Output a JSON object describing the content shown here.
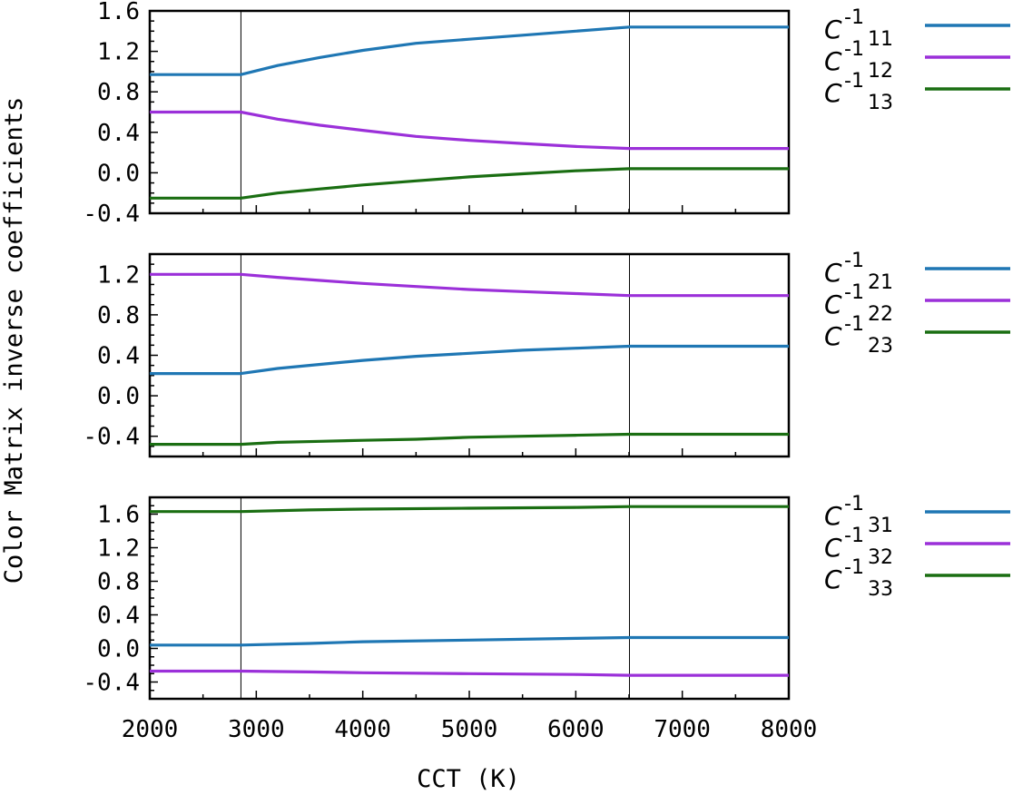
{
  "chart_data": {
    "type": "line",
    "xlabel": "CCT (K)",
    "ylabel": "Color Matrix inverse coefficients",
    "xlim": [
      2000,
      8000
    ],
    "x_ticks": [
      "2000",
      "3000",
      "4000",
      "5000",
      "6000",
      "7000",
      "8000"
    ],
    "x_tick_values": [
      2000,
      3000,
      4000,
      5000,
      6000,
      7000,
      8000
    ],
    "vlines": [
      2856,
      6504
    ],
    "colors": {
      "blue": "#1f77b4",
      "purple": "#9b30d9",
      "green": "#1a6e12"
    },
    "panels": [
      {
        "ylim": [
          -0.4,
          1.6
        ],
        "y_ticks": [
          "-0.4",
          "0.0",
          "0.4",
          "0.8",
          "1.2",
          "1.6"
        ],
        "y_tick_values": [
          -0.4,
          0.0,
          0.4,
          0.8,
          1.2,
          1.6
        ],
        "series": [
          {
            "name": "C-1 11",
            "legend_main": "C",
            "legend_sup": "-1",
            "legend_sub": "11",
            "color": "#1f77b4",
            "x": [
              2000,
              2856,
              3200,
              3600,
              4000,
              4500,
              5000,
              5500,
              6000,
              6504,
              8000
            ],
            "y": [
              0.97,
              0.97,
              1.06,
              1.14,
              1.21,
              1.28,
              1.32,
              1.36,
              1.4,
              1.44,
              1.44
            ]
          },
          {
            "name": "C-1 12",
            "legend_main": "C",
            "legend_sup": "-1",
            "legend_sub": "12",
            "color": "#9b30d9",
            "x": [
              2000,
              2856,
              3200,
              3600,
              4000,
              4500,
              5000,
              5500,
              6000,
              6504,
              8000
            ],
            "y": [
              0.6,
              0.6,
              0.53,
              0.47,
              0.42,
              0.36,
              0.32,
              0.29,
              0.26,
              0.24,
              0.24
            ]
          },
          {
            "name": "C-1 13",
            "legend_main": "C",
            "legend_sup": "-1",
            "legend_sub": "13",
            "color": "#1a6e12",
            "x": [
              2000,
              2856,
              3200,
              3600,
              4000,
              4500,
              5000,
              5500,
              6000,
              6504,
              8000
            ],
            "y": [
              -0.25,
              -0.25,
              -0.2,
              -0.16,
              -0.12,
              -0.08,
              -0.04,
              -0.01,
              0.02,
              0.04,
              0.04
            ]
          }
        ]
      },
      {
        "ylim": [
          -0.6,
          1.4
        ],
        "y_ticks": [
          "-0.4",
          "0.0",
          "0.4",
          "0.8",
          "1.2"
        ],
        "y_tick_values": [
          -0.4,
          0.0,
          0.4,
          0.8,
          1.2
        ],
        "series": [
          {
            "name": "C-1 21",
            "legend_main": "C",
            "legend_sup": "-1",
            "legend_sub": "21",
            "color": "#1f77b4",
            "x": [
              2000,
              2856,
              3200,
              3600,
              4000,
              4500,
              5000,
              5500,
              6000,
              6504,
              8000
            ],
            "y": [
              0.22,
              0.22,
              0.27,
              0.31,
              0.35,
              0.39,
              0.42,
              0.45,
              0.47,
              0.49,
              0.49
            ]
          },
          {
            "name": "C-1 22",
            "legend_main": "C",
            "legend_sup": "-1",
            "legend_sub": "22",
            "color": "#9b30d9",
            "x": [
              2000,
              2856,
              3200,
              3600,
              4000,
              4500,
              5000,
              5500,
              6000,
              6504,
              8000
            ],
            "y": [
              1.2,
              1.2,
              1.17,
              1.14,
              1.11,
              1.08,
              1.05,
              1.03,
              1.01,
              0.99,
              0.99
            ]
          },
          {
            "name": "C-1 23",
            "legend_main": "C",
            "legend_sup": "-1",
            "legend_sub": "23",
            "color": "#1a6e12",
            "x": [
              2000,
              2856,
              3200,
              3600,
              4000,
              4500,
              5000,
              5500,
              6000,
              6504,
              8000
            ],
            "y": [
              -0.48,
              -0.48,
              -0.46,
              -0.45,
              -0.44,
              -0.43,
              -0.41,
              -0.4,
              -0.39,
              -0.38,
              -0.38
            ]
          }
        ]
      },
      {
        "ylim": [
          -0.6,
          1.8
        ],
        "y_ticks": [
          "-0.4",
          "0.0",
          "0.4",
          "0.8",
          "1.2",
          "1.6"
        ],
        "y_tick_values": [
          -0.4,
          0.0,
          0.4,
          0.8,
          1.2,
          1.6
        ],
        "series": [
          {
            "name": "C-1 31",
            "legend_main": "C",
            "legend_sup": "-1",
            "legend_sub": "31",
            "color": "#1f77b4",
            "x": [
              2000,
              2856,
              3500,
              4000,
              5000,
              6000,
              6504,
              8000
            ],
            "y": [
              0.04,
              0.04,
              0.06,
              0.08,
              0.1,
              0.12,
              0.13,
              0.13
            ]
          },
          {
            "name": "C-1 32",
            "legend_main": "C",
            "legend_sup": "-1",
            "legend_sub": "32",
            "color": "#9b30d9",
            "x": [
              2000,
              2856,
              3500,
              4000,
              5000,
              6000,
              6504,
              8000
            ],
            "y": [
              -0.27,
              -0.27,
              -0.28,
              -0.29,
              -0.3,
              -0.31,
              -0.32,
              -0.32
            ]
          },
          {
            "name": "C-1 33",
            "legend_main": "C",
            "legend_sup": "-1",
            "legend_sub": "33",
            "color": "#1a6e12",
            "x": [
              2000,
              2856,
              3500,
              4000,
              5000,
              6000,
              6504,
              8000
            ],
            "y": [
              1.63,
              1.63,
              1.65,
              1.66,
              1.67,
              1.68,
              1.69,
              1.69
            ]
          }
        ]
      }
    ]
  }
}
